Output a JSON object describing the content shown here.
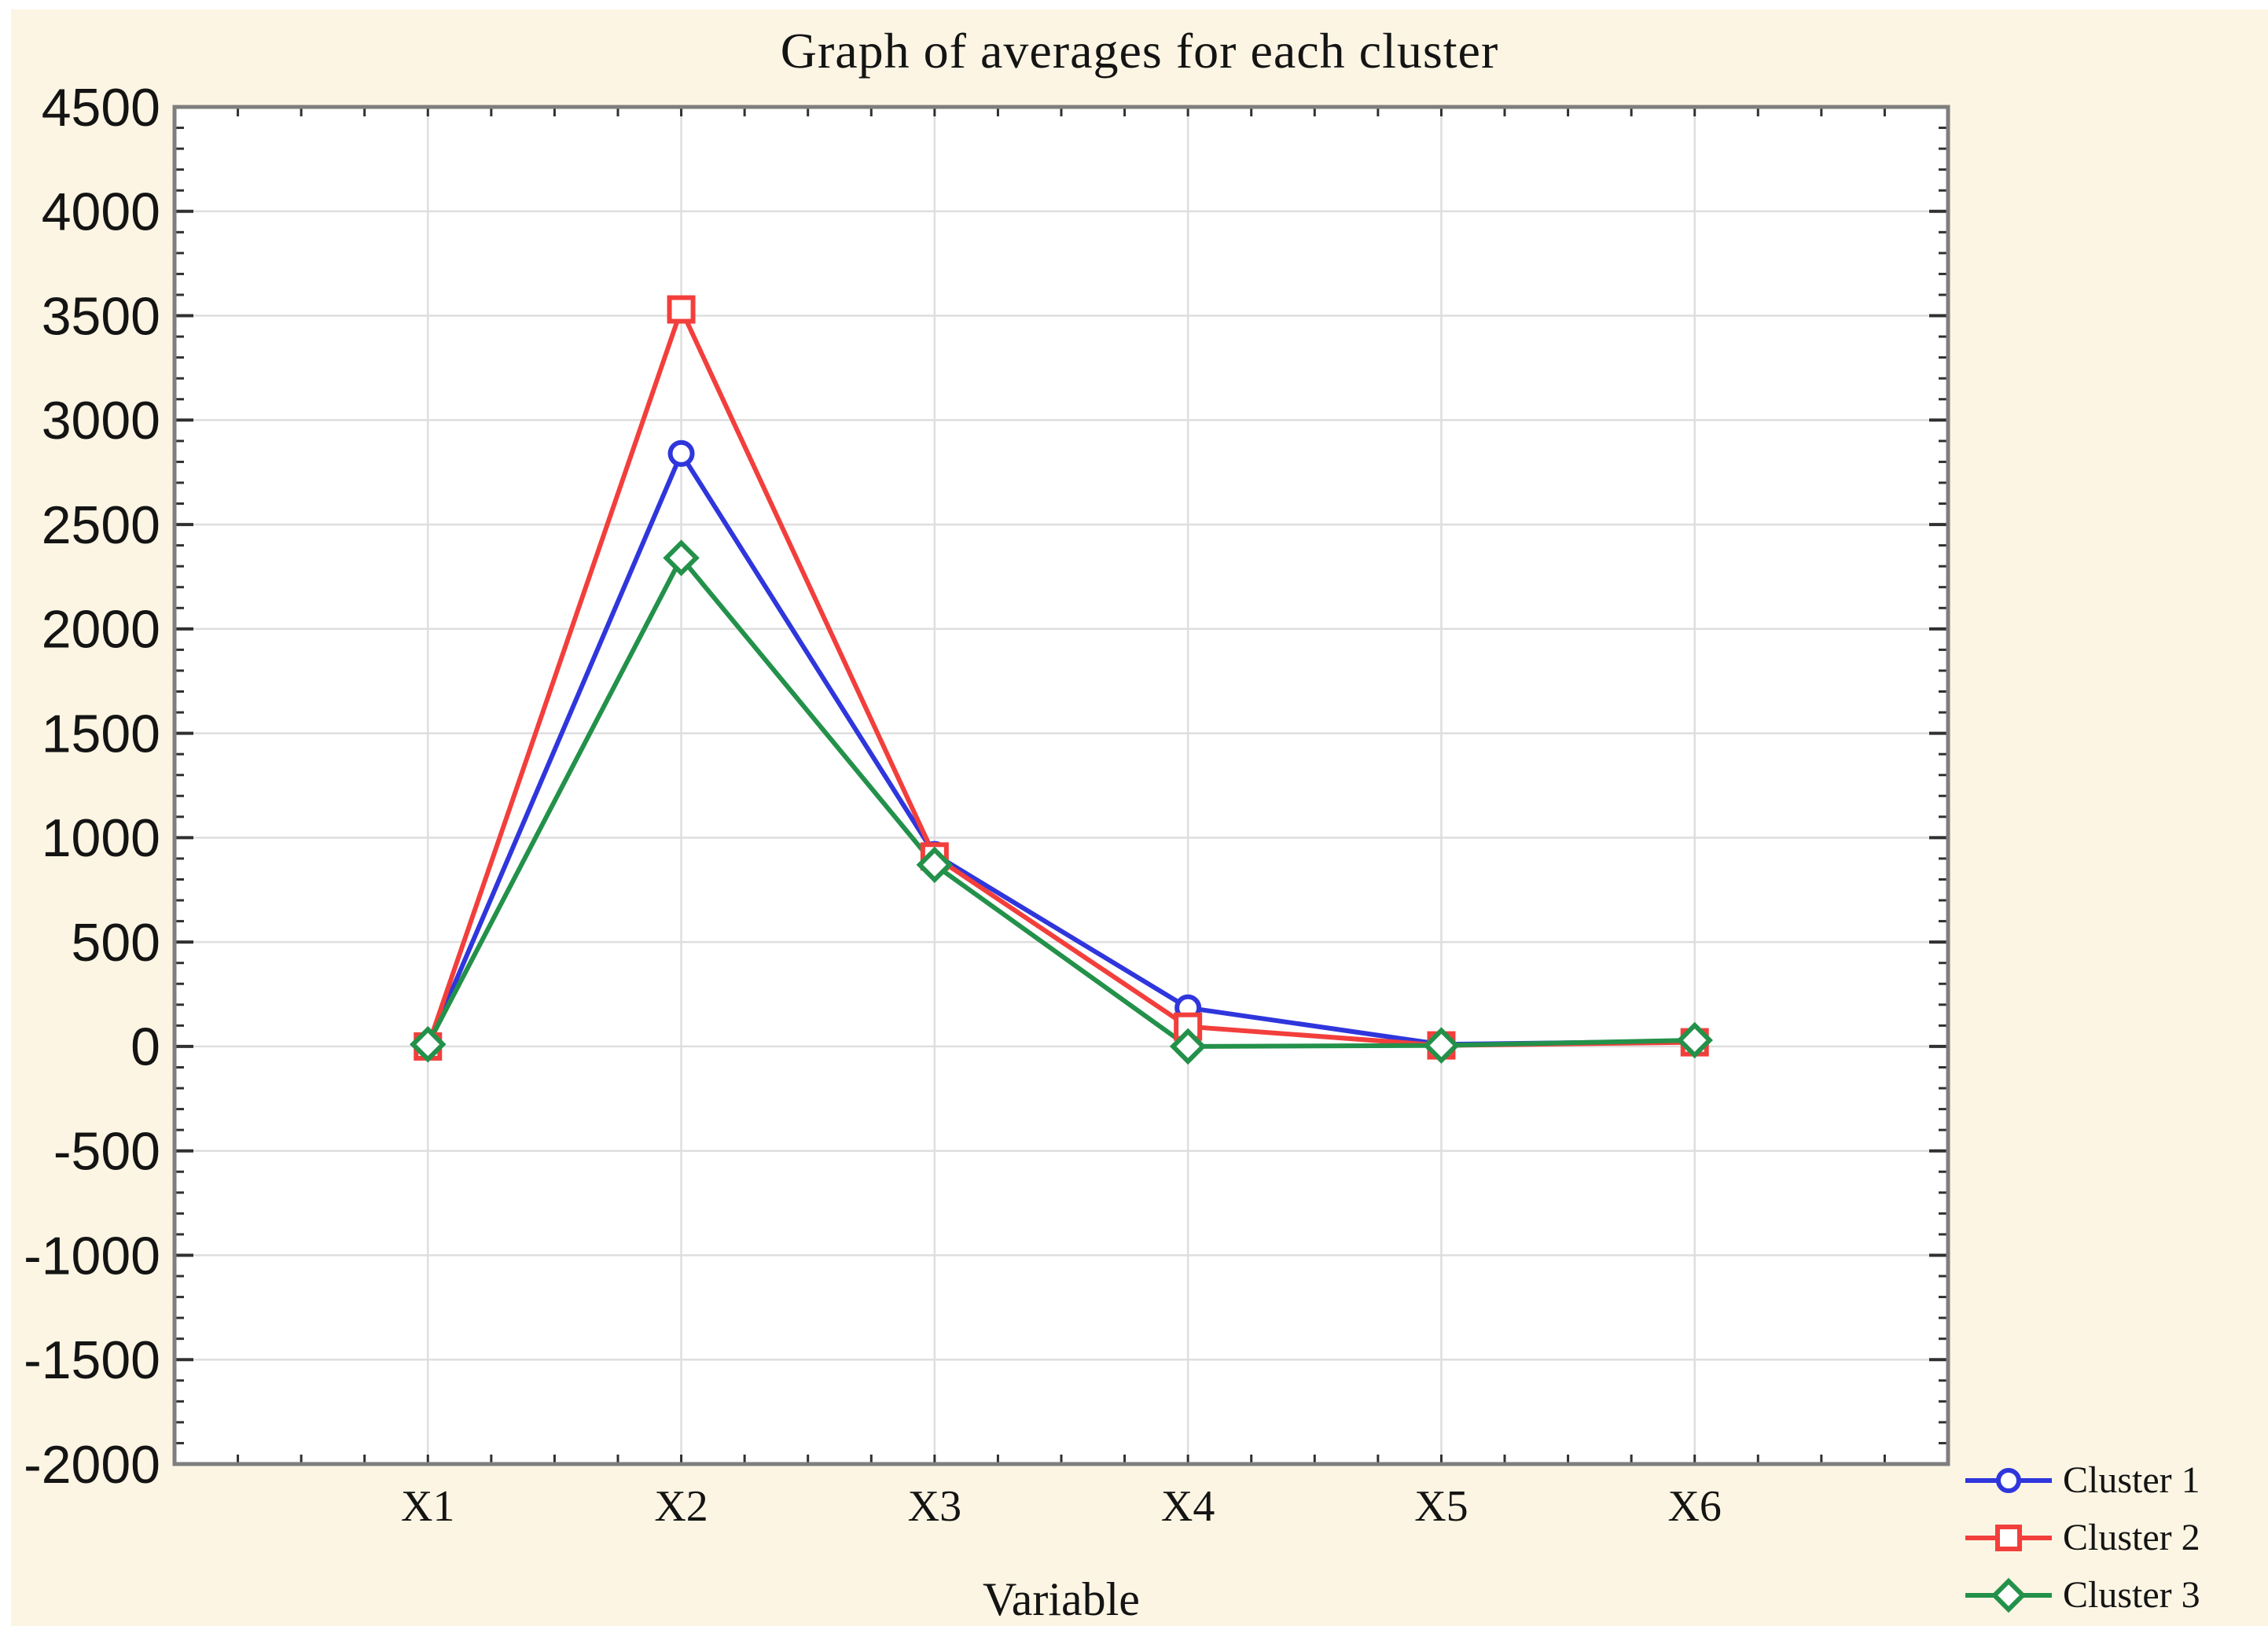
{
  "chart_data": {
    "type": "line",
    "title": "Graph of averages for each cluster",
    "xlabel": "Variable",
    "ylabel": "",
    "categories": [
      "X1",
      "X2",
      "X3",
      "X4",
      "X5",
      "X6"
    ],
    "series": [
      {
        "name": "Cluster 1",
        "color": "#2F36DC",
        "marker": "circle",
        "values": [
          0,
          2840,
          920,
          185,
          10,
          25
        ]
      },
      {
        "name": "Cluster 2",
        "color": "#F23F3C",
        "marker": "square",
        "values": [
          0,
          3530,
          910,
          95,
          5,
          20
        ]
      },
      {
        "name": "Cluster 3",
        "color": "#23914A",
        "marker": "diamond",
        "values": [
          10,
          2340,
          870,
          0,
          5,
          30
        ]
      }
    ],
    "ylim": [
      -2000,
      4500
    ],
    "ytick_step": 500,
    "ytick_labels": [
      "4500",
      "4000",
      "3500",
      "3000",
      "2500",
      "2000",
      "1500",
      "1000",
      "500",
      "0",
      "-500",
      "-1000",
      "-1500",
      "-2000"
    ],
    "y_minor_step": 100,
    "grid": true,
    "legend_position": "bottom-right",
    "legend_labels": [
      "Cluster 1",
      "Cluster 2",
      "Cluster 3"
    ]
  },
  "style": {
    "page_background": "#FCF5E3",
    "plot_background": "#FFFFFF",
    "grid_color": "#DEDEDE",
    "frame_color": "#7E7E7E",
    "tick_color": "#303030",
    "text_color": "#141414",
    "accent_blue": "#2F36DC",
    "accent_red": "#F23F3C",
    "accent_green": "#23914A"
  }
}
